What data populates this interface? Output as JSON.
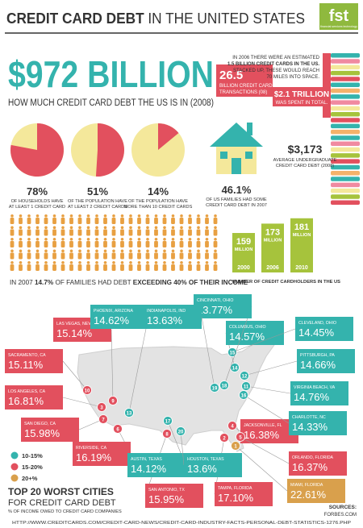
{
  "header": {
    "title_bold": "CREDIT CARD DEBT",
    "title_rest": " IN THE UNITED STATES",
    "logo": "fst",
    "logo_tagline": "financial services technology"
  },
  "hero": {
    "amount": "$972 BILLION",
    "caption": "HOW MUCH CREDIT CARD DEBT THE US IS IN (2008)"
  },
  "cards": {
    "note": [
      "IN 2006 THERE WERE AN ESTIMATED",
      "1.5 BILLION CREDIT CARDS IN THE US.",
      "STACKED UP, THESE WOULD REACH",
      "70 MILES INTO SPACE."
    ],
    "transactions": "26.5",
    "transactions_caption": [
      "BILLION CREDIT CARD",
      "TRANSACTIONS (08)"
    ],
    "spent": "$2.1 TRILLION",
    "spent_caption": "WAS SPENT IN TOTAL."
  },
  "pies": {
    "type": "pie",
    "colors": [
      "#e2505e",
      "#f4e89b"
    ],
    "items": [
      {
        "value": 78,
        "label": "78%",
        "caption": [
          "OF HOUSEHOLDS HAVE",
          "AT LEAST 1 CREDIT CARD"
        ]
      },
      {
        "value": 51,
        "label": "51%",
        "caption": [
          "OF THE POPULATION HAVE",
          "AT LEAST 2 CREDIT CARDS"
        ]
      },
      {
        "value": 14,
        "label": "14%",
        "caption": [
          "OF THE POPULATION HAVE",
          "MORE THAN 10 CREDIT CARDS"
        ]
      }
    ]
  },
  "families": {
    "label": "46.1%",
    "caption": [
      "OF US FAMILIES HAD SOME",
      "CREDIT CARD DEBT IN 2007"
    ]
  },
  "undergrad": {
    "amount": "$3,173",
    "caption": [
      "AVERAGE UNDERGRADUATE",
      "CREDIT CARD DEBT (2008)"
    ]
  },
  "people": {
    "parts": [
      "IN 2007 ",
      "14.7%",
      " OF FAMILIES HAD DEBT ",
      "EXCEEDING 40% OF THEIR INCOME"
    ]
  },
  "cardholders": {
    "type": "bar",
    "categories": [
      "2000",
      "2006",
      "2010"
    ],
    "values": [
      159,
      173,
      181
    ],
    "unit": "MILLION",
    "ylim": [
      100,
      200
    ],
    "color": "#a6c33c",
    "caption": "NUMBER OF CREDIT CARDHOLDERS IN THE US"
  },
  "map": {
    "legend": [
      {
        "label": "10-15%",
        "color": "#34b3ad"
      },
      {
        "label": "15-20%",
        "color": "#e2505e"
      },
      {
        "label": "20+%",
        "color": "#d9a04c"
      }
    ],
    "cities": [
      {
        "rank": "1",
        "name": "MIAMI, FLORIDA",
        "value": "22.61%",
        "color": "#d9a04c"
      },
      {
        "rank": "2",
        "name": "TAMPA, FLORIDA",
        "value": "17.10%",
        "color": "#e2505e"
      },
      {
        "rank": "3",
        "name": "LOS ANGELES, CA",
        "value": "16.81%",
        "color": "#e2505e"
      },
      {
        "rank": "4",
        "name": "JACKSONVILLE, FL",
        "value": "16.38%",
        "color": "#e2505e"
      },
      {
        "rank": "5",
        "name": "ORLANDO, FLORIDA",
        "value": "16.37%",
        "color": "#e2505e"
      },
      {
        "rank": "6",
        "name": "RIVERSIDE, CA",
        "value": "16.19%",
        "color": "#e2505e"
      },
      {
        "rank": "7",
        "name": "SAN DIEGO, CA",
        "value": "15.98%",
        "color": "#e2505e"
      },
      {
        "rank": "8",
        "name": "SAN ANTONIO, TX",
        "value": "15.95%",
        "color": "#e2505e"
      },
      {
        "rank": "9",
        "name": "LAS VEGAS, NEV",
        "value": "15.14%",
        "color": "#e2505e"
      },
      {
        "rank": "10",
        "name": "SACRAMENTO, CA",
        "value": "15.11%",
        "color": "#e2505e"
      },
      {
        "rank": "11",
        "name": "VIRGINIA BEACH, VA",
        "value": "14.76%",
        "color": "#34b3ad"
      },
      {
        "rank": "12",
        "name": "PITTSBURGH, PA",
        "value": "14.66%",
        "color": "#34b3ad"
      },
      {
        "rank": "13",
        "name": "PHOENIX, ARIZONA",
        "value": "14.62%",
        "color": "#34b3ad"
      },
      {
        "rank": "14",
        "name": "COLUMBUS, OHIO",
        "value": "14.57%",
        "color": "#34b3ad"
      },
      {
        "rank": "15",
        "name": "CLEVELAND, OHIO",
        "value": "14.45%",
        "color": "#34b3ad"
      },
      {
        "rank": "16",
        "name": "CHARLOTTE, NC",
        "value": "14.33%",
        "color": "#34b3ad"
      },
      {
        "rank": "17",
        "name": "AUSTIN, TEXAS",
        "value": "14.12%",
        "color": "#34b3ad"
      },
      {
        "rank": "18",
        "name": "CINCINNATI, OHIO",
        "value": "13.77%",
        "color": "#34b3ad"
      },
      {
        "rank": "19",
        "name": "INDIANAPOLIS, IND",
        "value": "13.63%",
        "color": "#34b3ad"
      },
      {
        "rank": "20",
        "name": "HOUSTON, TEXAS",
        "value": "13.6%",
        "color": "#34b3ad"
      }
    ]
  },
  "footer": {
    "title": [
      "TOP 20 WORST CITIES",
      "FOR CREDIT CARD DEBT"
    ],
    "subtitle": "% OF INCOME OWED TO CREDIT CARD COMPANIES",
    "sources_label": "SOURCES:",
    "sources": [
      "FORBES.COM",
      "HTTP://WWW.CREDITCARDS.COM/CREDIT-CARD-NEWS/CREDIT-CARD-INDUSTRY-FACTS-PERSONAL-DEBT-STATISTICS-1276.PHP"
    ]
  }
}
